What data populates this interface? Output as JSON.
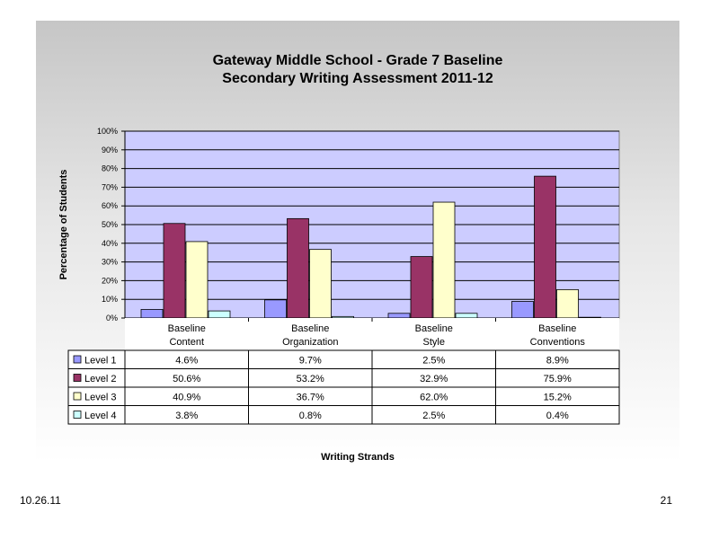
{
  "slide": {
    "date": "10.26.11",
    "page_number": "21"
  },
  "chart_data": {
    "type": "bar",
    "title_lines": [
      "Gateway Middle School - Grade 7 Baseline",
      "Secondary Writing Assessment 2011-12"
    ],
    "xlabel": "Writing Strands",
    "ylabel": "Percentage of Students",
    "ylim": [
      0,
      100
    ],
    "y_ticks": [
      "0%",
      "10%",
      "20%",
      "30%",
      "40%",
      "50%",
      "60%",
      "70%",
      "80%",
      "90%",
      "100%"
    ],
    "categories": [
      [
        "Baseline",
        "Content"
      ],
      [
        "Baseline",
        "Organization"
      ],
      [
        "Baseline",
        "Style"
      ],
      [
        "Baseline",
        "Conventions"
      ]
    ],
    "series": [
      {
        "name": "Level 1",
        "color": "#9999ff",
        "values": [
          4.6,
          9.7,
          2.5,
          8.9
        ],
        "labels": [
          "4.6%",
          "9.7%",
          "2.5%",
          "8.9%"
        ]
      },
      {
        "name": "Level 2",
        "color": "#993366",
        "values": [
          50.6,
          53.2,
          32.9,
          75.9
        ],
        "labels": [
          "50.6%",
          "53.2%",
          "32.9%",
          "75.9%"
        ]
      },
      {
        "name": "Level 3",
        "color": "#ffffcc",
        "values": [
          40.9,
          36.7,
          62.0,
          15.2
        ],
        "labels": [
          "40.9%",
          "36.7%",
          "62.0%",
          "15.2%"
        ]
      },
      {
        "name": "Level 4",
        "color": "#ccffff",
        "values": [
          3.8,
          0.8,
          2.5,
          0.4
        ],
        "labels": [
          "3.8%",
          "0.8%",
          "2.5%",
          "0.4%"
        ]
      }
    ],
    "plot_background": "#ccccff",
    "grid": true,
    "legend": "data-table-left"
  }
}
